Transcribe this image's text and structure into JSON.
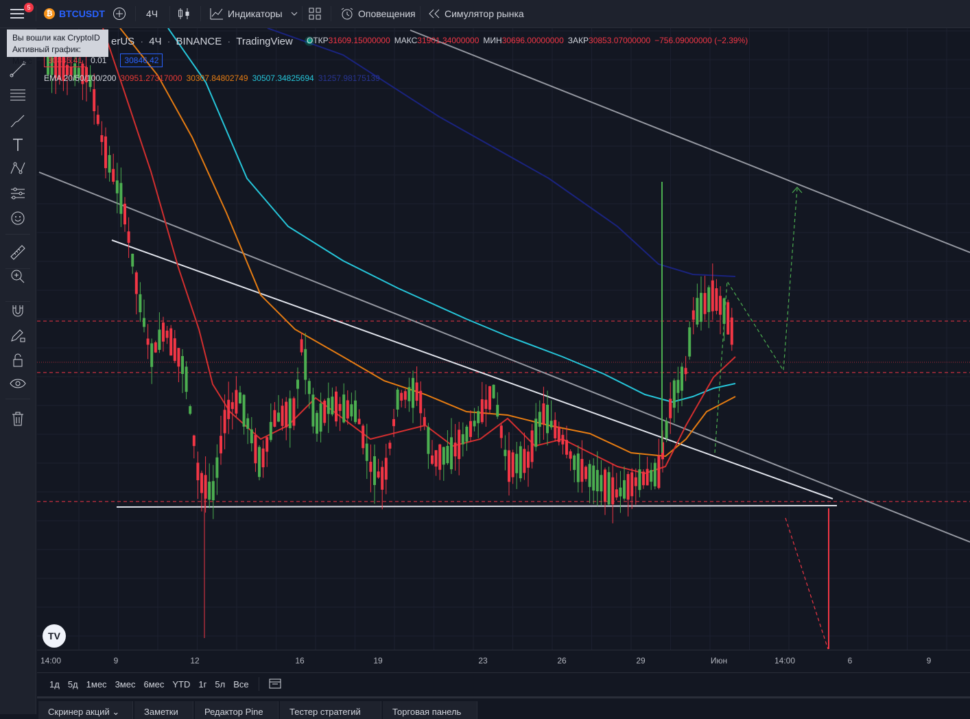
{
  "topbar": {
    "menu_badge": "5",
    "symbol": "BTCUSDT",
    "interval": "4Ч",
    "indicators_label": "Индикаторы",
    "alerts_label": "Оповещения",
    "simulator_label": "Симулятор рынка",
    "icons": [
      "menu-icon",
      "plus-icon",
      "candles-icon",
      "indicators-icon",
      "chevron-down-icon",
      "layouts-icon",
      "alarm-icon",
      "replay-icon"
    ]
  },
  "tooltip": {
    "line1": "Вы вошли как CryptoID",
    "line2": "Активный график: Matic"
  },
  "legend": {
    "symbol_name": "erUS",
    "interval": "4Ч",
    "exchange": "BINANCE",
    "source": "TradingView",
    "open_label": "ОТКР",
    "open": "31609.15000000",
    "high_label": "МАКС",
    "high": "31901.34000000",
    "low_label": "МИН",
    "low": "30696.00000000",
    "close_label": "ЗАКР",
    "close": "30853.07000000",
    "change": "−756.09000000 (−2.39%)",
    "bid": "30846.41",
    "spread": "0.01",
    "ask": "30846.42",
    "ema_label": "EMA 20/50/100/200",
    "ema20": "30951.27317000",
    "ema50": "30307.84802749",
    "ema100": "30507.34825694",
    "ema200": "31257.98175139"
  },
  "colors": {
    "up": "#4caf50",
    "down": "#f23645",
    "ema20": "#d32f2f",
    "ema50": "#e67c12",
    "ema100": "#26c6da",
    "ema200": "#1a237e"
  },
  "sidebar_icons": [
    "crosshair-icon",
    "trendline-icon",
    "fib-icon",
    "brush-icon",
    "text-icon",
    "pattern-icon",
    "forecast-icon",
    "emoji-icon",
    "ruler-icon",
    "zoom-icon",
    "magnet-icon",
    "lock-draw-icon",
    "lock-icon",
    "eye-icon",
    "trash-icon"
  ],
  "xaxis": {
    "ticks": [
      {
        "label": "14:00",
        "x": 20
      },
      {
        "label": "9",
        "x": 115
      },
      {
        "label": "12",
        "x": 230
      },
      {
        "label": "16",
        "x": 383
      },
      {
        "label": "19",
        "x": 497
      },
      {
        "label": "23",
        "x": 650
      },
      {
        "label": "26",
        "x": 765
      },
      {
        "label": "29",
        "x": 880
      },
      {
        "label": "Июн",
        "x": 994
      },
      {
        "label": "14:00",
        "x": 1090
      },
      {
        "label": "6",
        "x": 1185
      },
      {
        "label": "9",
        "x": 1300
      }
    ]
  },
  "timeframes": [
    "1д",
    "5д",
    "1мес",
    "3мес",
    "6мес",
    "YTD",
    "1г",
    "5л",
    "Все"
  ],
  "bottom_tabs": [
    "Скринер акций",
    "Заметки",
    "Редактор Pine",
    "Тестер стратегий",
    "Торговая панель"
  ]
}
